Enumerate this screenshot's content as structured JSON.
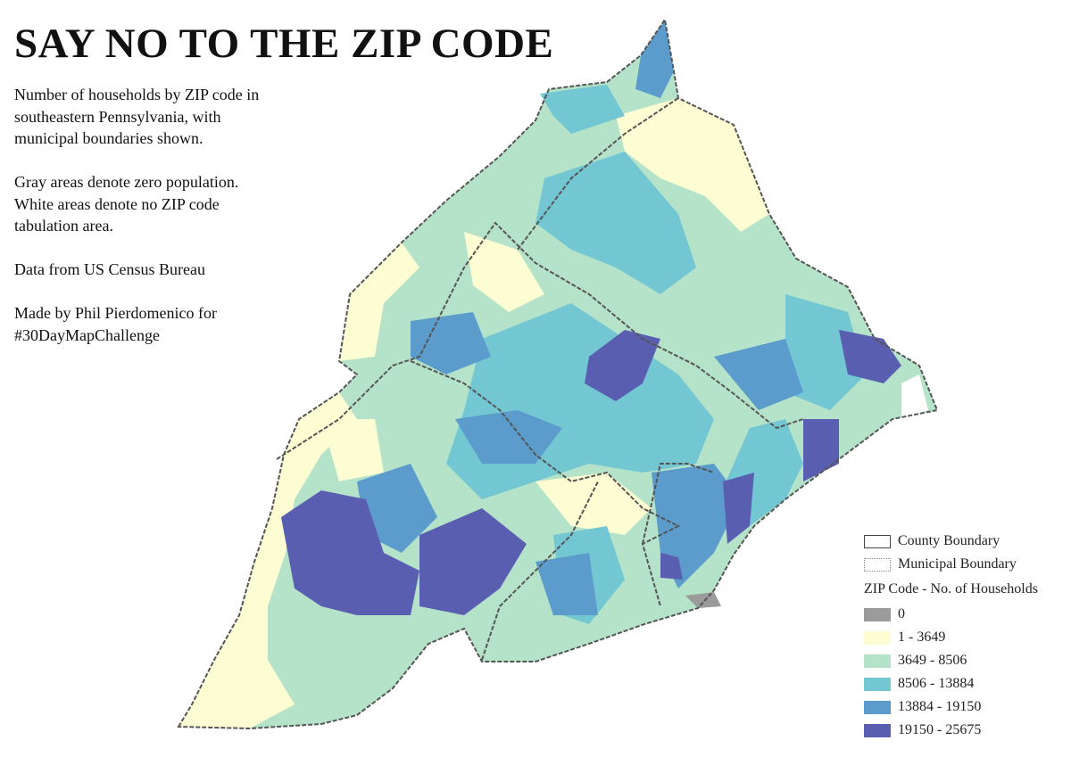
{
  "header": {
    "title": "SAY NO TO THE ZIP CODE"
  },
  "description": {
    "paragraphs": [
      [
        "Number of households by ZIP code in",
        "southeastern Pennsylvania, with",
        "municipal boundaries shown."
      ],
      [
        "Gray areas denote zero population.",
        "White areas denote no ZIP code",
        "tabulation area."
      ],
      [
        "Data from US Census Bureau"
      ],
      [
        "Made by Phil Pierdomenico for",
        "#30DayMapChallenge"
      ]
    ]
  },
  "legend": {
    "boundaries": [
      {
        "label": "County Boundary",
        "style": "solid"
      },
      {
        "label": "Municipal Boundary",
        "style": "dotted"
      }
    ],
    "title": "ZIP Code - No. of Households",
    "classes": [
      {
        "label": "0",
        "color": "#9b9b9b"
      },
      {
        "label": "1 - 3649",
        "color": "#fdfdd3"
      },
      {
        "label": "3649 - 8506",
        "color": "#b5e3c9"
      },
      {
        "label": "8506 - 13884",
        "color": "#72c7d3"
      },
      {
        "label": "13884 - 19150",
        "color": "#5b9ccd"
      },
      {
        "label": "19150 - 25675",
        "color": "#5a5eb0"
      }
    ]
  }
}
